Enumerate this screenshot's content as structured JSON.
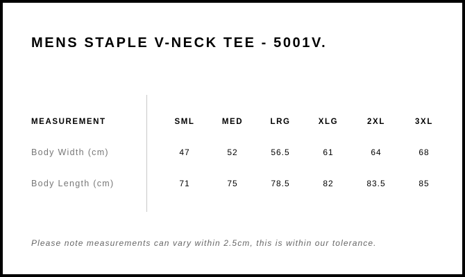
{
  "title": "MENS STAPLE V-NECK TEE - 5001V.",
  "table": {
    "header_label": "MEASUREMENT",
    "sizes": [
      "SML",
      "MED",
      "LRG",
      "XLG",
      "2XL",
      "3XL"
    ],
    "rows": [
      {
        "label": "Body Width (cm)",
        "values": [
          "47",
          "52",
          "56.5",
          "61",
          "64",
          "68"
        ]
      },
      {
        "label": "Body Length (cm)",
        "values": [
          "71",
          "75",
          "78.5",
          "82",
          "83.5",
          "85"
        ]
      }
    ]
  },
  "note": "Please note measurements can vary within 2.5cm, this is within our tolerance."
}
